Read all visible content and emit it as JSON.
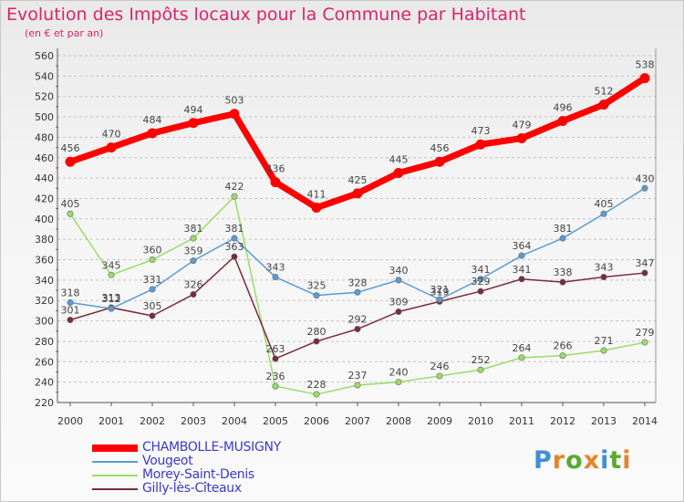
{
  "header": {
    "title": "Evolution des Impôts locaux pour la Commune par Habitant",
    "subtitle": "(en € et par an)"
  },
  "logo": {
    "text": "Proxiti",
    "colors": [
      "#3d8fd6",
      "#e8832a",
      "#5aa833",
      "#e8832a",
      "#3d8fd6",
      "#5aa833",
      "#e8832a"
    ]
  },
  "chart_data": {
    "type": "line",
    "x": [
      "2000",
      "2001",
      "2002",
      "2003",
      "2004",
      "2005",
      "2006",
      "2007",
      "2008",
      "2009",
      "2010",
      "2011",
      "2012",
      "2013",
      "2014"
    ],
    "ylim": [
      220,
      560
    ],
    "yticks": [
      220,
      240,
      260,
      280,
      300,
      320,
      340,
      360,
      380,
      400,
      420,
      440,
      460,
      480,
      500,
      520,
      540,
      560
    ],
    "grid": "horizontal-dashed",
    "legend_position": "bottom-left",
    "series": [
      {
        "name": "Morey-Saint-Denis",
        "color": "#99dd66",
        "values": [
          405,
          345,
          360,
          381,
          422,
          236,
          228,
          237,
          240,
          246,
          252,
          264,
          266,
          271,
          279
        ]
      },
      {
        "name": "Gilly-lès-Cîteaux",
        "color": "#7a2b3a",
        "values": [
          301,
          313,
          305,
          326,
          363,
          263,
          280,
          292,
          309,
          319,
          329,
          341,
          338,
          343,
          347
        ]
      },
      {
        "name": "Vougeot",
        "color": "#5b9bd5",
        "values": [
          318,
          312,
          331,
          359,
          381,
          343,
          325,
          328,
          340,
          321,
          341,
          364,
          381,
          405,
          430
        ]
      },
      {
        "name": "CHAMBOLLE-MUSIGNY",
        "color": "#ff0000",
        "values": [
          456,
          470,
          484,
          494,
          503,
          436,
          411,
          425,
          445,
          456,
          473,
          479,
          496,
          512,
          538
        ]
      }
    ]
  }
}
